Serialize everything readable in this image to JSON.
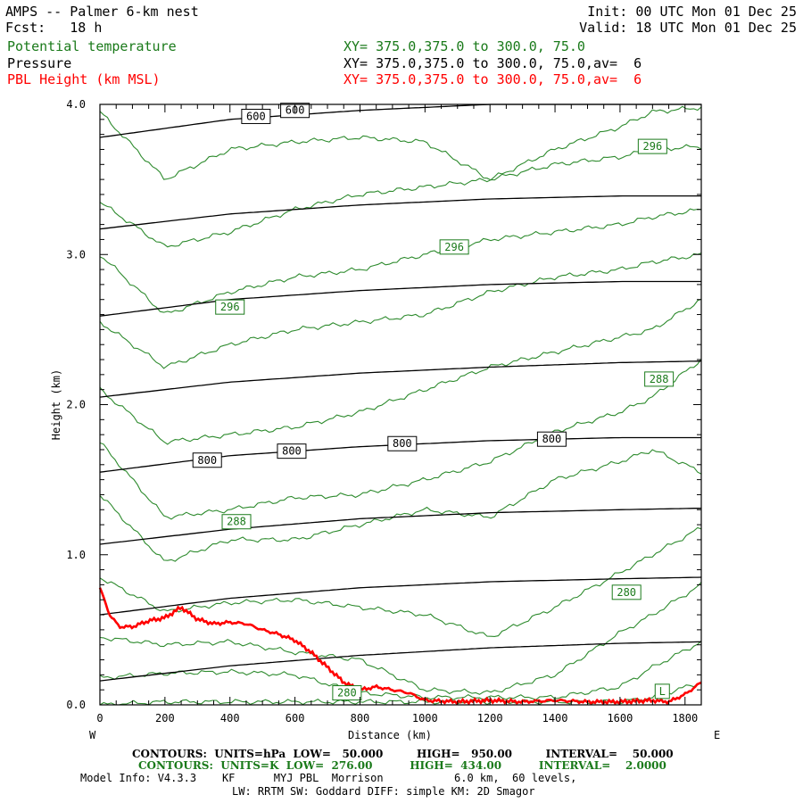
{
  "header": {
    "title": "AMPS -- Palmer 6-km nest",
    "fcst": "Fcst:   18 h",
    "init": "Init: 00 UTC Mon 01 Dec 25",
    "valid": "Valid: 18 UTC Mon 01 Dec 25",
    "fields": [
      {
        "name": "Potential temperature",
        "xy": "XY= 375.0,375.0 to 300.0, 75.0",
        "color": "#1a7a1a"
      },
      {
        "name": "Pressure",
        "xy": "XY= 375.0,375.0 to 300.0, 75.0,av=  6",
        "color": "#000000"
      },
      {
        "name": "PBL Height (km MSL)",
        "xy": "XY= 375.0,375.0 to 300.0, 75.0,av=  6",
        "color": "#ff0000"
      }
    ]
  },
  "chart_data": {
    "type": "line",
    "title": "Cross-section: Potential temperature, Pressure, PBL Height",
    "xlabel": "Distance (km)",
    "ylabel": "Height (km)",
    "xlim": [
      0,
      1850
    ],
    "ylim": [
      0,
      4.0
    ],
    "x_ticks": [
      0,
      200,
      400,
      600,
      800,
      1000,
      1200,
      1400,
      1600,
      1800
    ],
    "x_tick_labels": [
      "0",
      "200",
      "400",
      "600",
      "800",
      "1000",
      "1200",
      "1400",
      "1600",
      "1800"
    ],
    "y_ticks": [
      0,
      1,
      2,
      3,
      4
    ],
    "y_tick_labels": [
      "0.0",
      "1.0",
      "2.0",
      "3.0",
      "4.0"
    ],
    "left_label": "W",
    "right_label": "E",
    "pressure_contours": [
      {
        "level": 600,
        "x": [
          0,
          400,
          800,
          1200,
          1600,
          1850
        ],
        "y": [
          3.78,
          3.9,
          3.96,
          4.0,
          4.02,
          4.03
        ]
      },
      {
        "level": 650,
        "x": [
          0,
          400,
          800,
          1200,
          1600,
          1850
        ],
        "y": [
          3.17,
          3.27,
          3.33,
          3.37,
          3.39,
          3.39
        ]
      },
      {
        "level": 700,
        "x": [
          0,
          400,
          800,
          1200,
          1600,
          1850
        ],
        "y": [
          2.59,
          2.7,
          2.76,
          2.8,
          2.82,
          2.82
        ]
      },
      {
        "level": 750,
        "x": [
          0,
          400,
          800,
          1200,
          1600,
          1850
        ],
        "y": [
          2.05,
          2.15,
          2.21,
          2.25,
          2.28,
          2.29
        ]
      },
      {
        "level": 800,
        "x": [
          0,
          400,
          800,
          1200,
          1600,
          1850
        ],
        "y": [
          1.55,
          1.66,
          1.72,
          1.76,
          1.78,
          1.78
        ]
      },
      {
        "level": 850,
        "x": [
          0,
          400,
          800,
          1200,
          1600,
          1850
        ],
        "y": [
          1.07,
          1.17,
          1.24,
          1.28,
          1.3,
          1.31
        ]
      },
      {
        "level": 900,
        "x": [
          0,
          400,
          800,
          1200,
          1600,
          1850
        ],
        "y": [
          0.6,
          0.71,
          0.78,
          0.82,
          0.84,
          0.85
        ]
      },
      {
        "level": 950,
        "x": [
          0,
          400,
          800,
          1200,
          1600,
          1850
        ],
        "y": [
          0.16,
          0.26,
          0.33,
          0.38,
          0.41,
          0.42
        ]
      }
    ],
    "pressure_labels": [
      {
        "text": "600",
        "x": 600,
        "y": 3.96
      },
      {
        "text": "600",
        "x": 480,
        "y": 3.92
      },
      {
        "text": "800",
        "x": 330,
        "y": 1.63
      },
      {
        "text": "800",
        "x": 590,
        "y": 1.69
      },
      {
        "text": "800",
        "x": 930,
        "y": 1.74
      },
      {
        "text": "800",
        "x": 1390,
        "y": 1.77
      }
    ],
    "theta_contours": [
      {
        "level": 278,
        "x": [
          0,
          200,
          400,
          600,
          800,
          1000,
          1200,
          1400,
          1600,
          1700,
          1850
        ],
        "y": [
          0.0,
          0.02,
          0.02,
          0.02,
          0.02,
          0.02,
          0.02,
          0.02,
          0.02,
          0.05,
          0.15
        ]
      },
      {
        "level": 280,
        "x": [
          0,
          200,
          400,
          600,
          800,
          1000,
          1200,
          1400,
          1600,
          1700,
          1850
        ],
        "y": [
          0.18,
          0.21,
          0.22,
          0.2,
          0.08,
          0.05,
          0.05,
          0.05,
          0.12,
          0.25,
          0.42
        ]
      },
      {
        "level": 282,
        "x": [
          0,
          200,
          400,
          600,
          800,
          1000,
          1200,
          1400,
          1600,
          1700,
          1850
        ],
        "y": [
          0.45,
          0.4,
          0.42,
          0.35,
          0.3,
          0.1,
          0.08,
          0.2,
          0.48,
          0.6,
          0.8
        ]
      },
      {
        "level": 284,
        "x": [
          0,
          200,
          400,
          600,
          800,
          1000,
          1200,
          1400,
          1600,
          1700,
          1850
        ],
        "y": [
          0.85,
          0.62,
          0.68,
          0.7,
          0.65,
          0.6,
          0.45,
          0.65,
          0.88,
          1.0,
          1.18
        ]
      },
      {
        "level": 286,
        "x": [
          0,
          200,
          400,
          600,
          800,
          1000,
          1200,
          1400,
          1600,
          1700,
          1850
        ],
        "y": [
          1.4,
          0.95,
          1.1,
          1.1,
          1.2,
          1.3,
          1.25,
          1.5,
          1.62,
          1.7,
          1.55
        ]
      },
      {
        "level": 288,
        "x": [
          0,
          200,
          400,
          600,
          800,
          1000,
          1200,
          1400,
          1600,
          1700,
          1850
        ],
        "y": [
          1.75,
          1.25,
          1.3,
          1.38,
          1.4,
          1.5,
          1.62,
          1.82,
          1.95,
          2.05,
          2.3
        ]
      },
      {
        "level": 290,
        "x": [
          0,
          200,
          400,
          600,
          800,
          1000,
          1200,
          1400,
          1600,
          1700,
          1850
        ],
        "y": [
          2.1,
          1.75,
          1.8,
          1.85,
          1.95,
          2.1,
          2.25,
          2.35,
          2.45,
          2.5,
          2.7
        ]
      },
      {
        "level": 292,
        "x": [
          0,
          200,
          400,
          600,
          800,
          1000,
          1200,
          1400,
          1600,
          1700,
          1850
        ],
        "y": [
          2.55,
          2.25,
          2.4,
          2.5,
          2.55,
          2.6,
          2.75,
          2.85,
          2.9,
          2.95,
          3.0
        ]
      },
      {
        "level": 294,
        "x": [
          0,
          200,
          400,
          600,
          800,
          1000,
          1200,
          1400,
          1600,
          1700,
          1850
        ],
        "y": [
          3.0,
          2.6,
          2.75,
          2.85,
          2.9,
          3.0,
          3.1,
          3.15,
          3.2,
          3.25,
          3.3
        ]
      },
      {
        "level": 296,
        "x": [
          0,
          200,
          400,
          600,
          800,
          1000,
          1200,
          1400,
          1600,
          1700,
          1850
        ],
        "y": [
          3.35,
          3.05,
          3.15,
          3.3,
          3.4,
          3.45,
          3.5,
          3.6,
          3.65,
          3.7,
          3.72
        ]
      },
      {
        "level": 298,
        "x": [
          0,
          200,
          400,
          600,
          800,
          1000,
          1200,
          1400,
          1600,
          1700,
          1850
        ],
        "y": [
          3.95,
          3.5,
          3.7,
          3.75,
          3.78,
          3.75,
          3.5,
          3.7,
          3.85,
          3.95,
          3.98
        ]
      }
    ],
    "theta_labels": [
      {
        "text": "296",
        "x": 1700,
        "y": 3.72
      },
      {
        "text": "296",
        "x": 1090,
        "y": 3.05
      },
      {
        "text": "296",
        "x": 400,
        "y": 2.65
      },
      {
        "text": "288",
        "x": 1720,
        "y": 2.17
      },
      {
        "text": "288",
        "x": 420,
        "y": 1.22
      },
      {
        "text": "280",
        "x": 1620,
        "y": 0.75
      },
      {
        "text": "280",
        "x": 760,
        "y": 0.08
      },
      {
        "text": "L",
        "x": 1730,
        "y": 0.09
      }
    ],
    "pbl_height": {
      "x": [
        0,
        30,
        60,
        100,
        150,
        200,
        250,
        300,
        350,
        400,
        450,
        500,
        550,
        600,
        650,
        700,
        750,
        800,
        850,
        900,
        950,
        1000,
        1100,
        1200,
        1300,
        1400,
        1500,
        1600,
        1700,
        1750,
        1800,
        1850
      ],
      "y": [
        0.78,
        0.6,
        0.52,
        0.52,
        0.56,
        0.58,
        0.65,
        0.57,
        0.54,
        0.55,
        0.54,
        0.5,
        0.47,
        0.43,
        0.35,
        0.25,
        0.15,
        0.1,
        0.12,
        0.1,
        0.08,
        0.03,
        0.02,
        0.03,
        0.02,
        0.03,
        0.02,
        0.02,
        0.03,
        0.02,
        0.07,
        0.15
      ]
    }
  },
  "footer": {
    "contours_pressure": "CONTOURS:  UNITS=hPa  LOW=   50.000         HIGH=   950.00         INTERVAL=    50.000",
    "contours_theta": "CONTOURS:  UNITS=K  LOW=  276.00          HIGH=  434.00          INTERVAL=    2.0000",
    "model_info": "Model Info: V4.3.3    KF      MYJ PBL  Morrison           6.0 km,  60 levels,",
    "model_info2": "LW: RRTM SW: Goddard DIFF: simple KM: 2D Smagor"
  }
}
